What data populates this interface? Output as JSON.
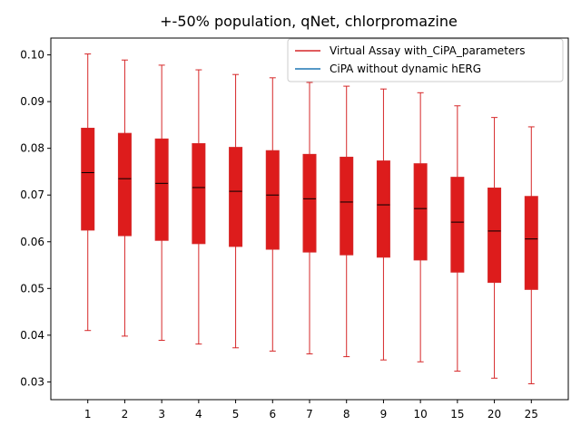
{
  "chart_data": {
    "type": "box",
    "title": "+-50% population, qNet, chlorpromazine",
    "xlabel": "",
    "ylabel": "",
    "categories": [
      "1",
      "2",
      "3",
      "4",
      "5",
      "6",
      "7",
      "8",
      "9",
      "10",
      "15",
      "20",
      "25"
    ],
    "ylim": [
      0.0262,
      0.1036
    ],
    "yticks": [
      0.03,
      0.04,
      0.05,
      0.06,
      0.07,
      0.08,
      0.09,
      0.1
    ],
    "ytick_labels": [
      "0.03",
      "0.04",
      "0.05",
      "0.06",
      "0.07",
      "0.08",
      "0.09",
      "0.10"
    ],
    "grid": false,
    "legend_position": "top-right",
    "series": [
      {
        "name": "Virtual Assay with_CiPA_parameters",
        "color": "#d62728",
        "box_fill": "#dd1c1c",
        "median_color": "#000000",
        "boxes": [
          {
            "whisker_low": 0.041,
            "q1": 0.0625,
            "median": 0.0748,
            "q3": 0.0843,
            "whisker_high": 0.1002
          },
          {
            "whisker_low": 0.0398,
            "q1": 0.0613,
            "median": 0.0735,
            "q3": 0.0832,
            "whisker_high": 0.0989
          },
          {
            "whisker_low": 0.0389,
            "q1": 0.0603,
            "median": 0.0725,
            "q3": 0.082,
            "whisker_high": 0.0978
          },
          {
            "whisker_low": 0.0381,
            "q1": 0.0596,
            "median": 0.0716,
            "q3": 0.081,
            "whisker_high": 0.0968
          },
          {
            "whisker_low": 0.0373,
            "q1": 0.059,
            "median": 0.0708,
            "q3": 0.0802,
            "whisker_high": 0.0958
          },
          {
            "whisker_low": 0.0366,
            "q1": 0.0584,
            "median": 0.07,
            "q3": 0.0795,
            "whisker_high": 0.0951
          },
          {
            "whisker_low": 0.036,
            "q1": 0.0578,
            "median": 0.0692,
            "q3": 0.0787,
            "whisker_high": 0.0941
          },
          {
            "whisker_low": 0.0354,
            "q1": 0.0572,
            "median": 0.0685,
            "q3": 0.0781,
            "whisker_high": 0.0933
          },
          {
            "whisker_low": 0.0347,
            "q1": 0.0567,
            "median": 0.0679,
            "q3": 0.0773,
            "whisker_high": 0.0927
          },
          {
            "whisker_low": 0.0343,
            "q1": 0.0561,
            "median": 0.0671,
            "q3": 0.0767,
            "whisker_high": 0.0919
          },
          {
            "whisker_low": 0.0323,
            "q1": 0.0535,
            "median": 0.0642,
            "q3": 0.0738,
            "whisker_high": 0.0891
          },
          {
            "whisker_low": 0.0308,
            "q1": 0.0513,
            "median": 0.0623,
            "q3": 0.0715,
            "whisker_high": 0.0866
          },
          {
            "whisker_low": 0.0296,
            "q1": 0.0498,
            "median": 0.0606,
            "q3": 0.0697,
            "whisker_high": 0.0846
          }
        ]
      },
      {
        "name": "CiPA without dynamic hERG",
        "color": "#1f77b4",
        "boxes": []
      }
    ]
  }
}
